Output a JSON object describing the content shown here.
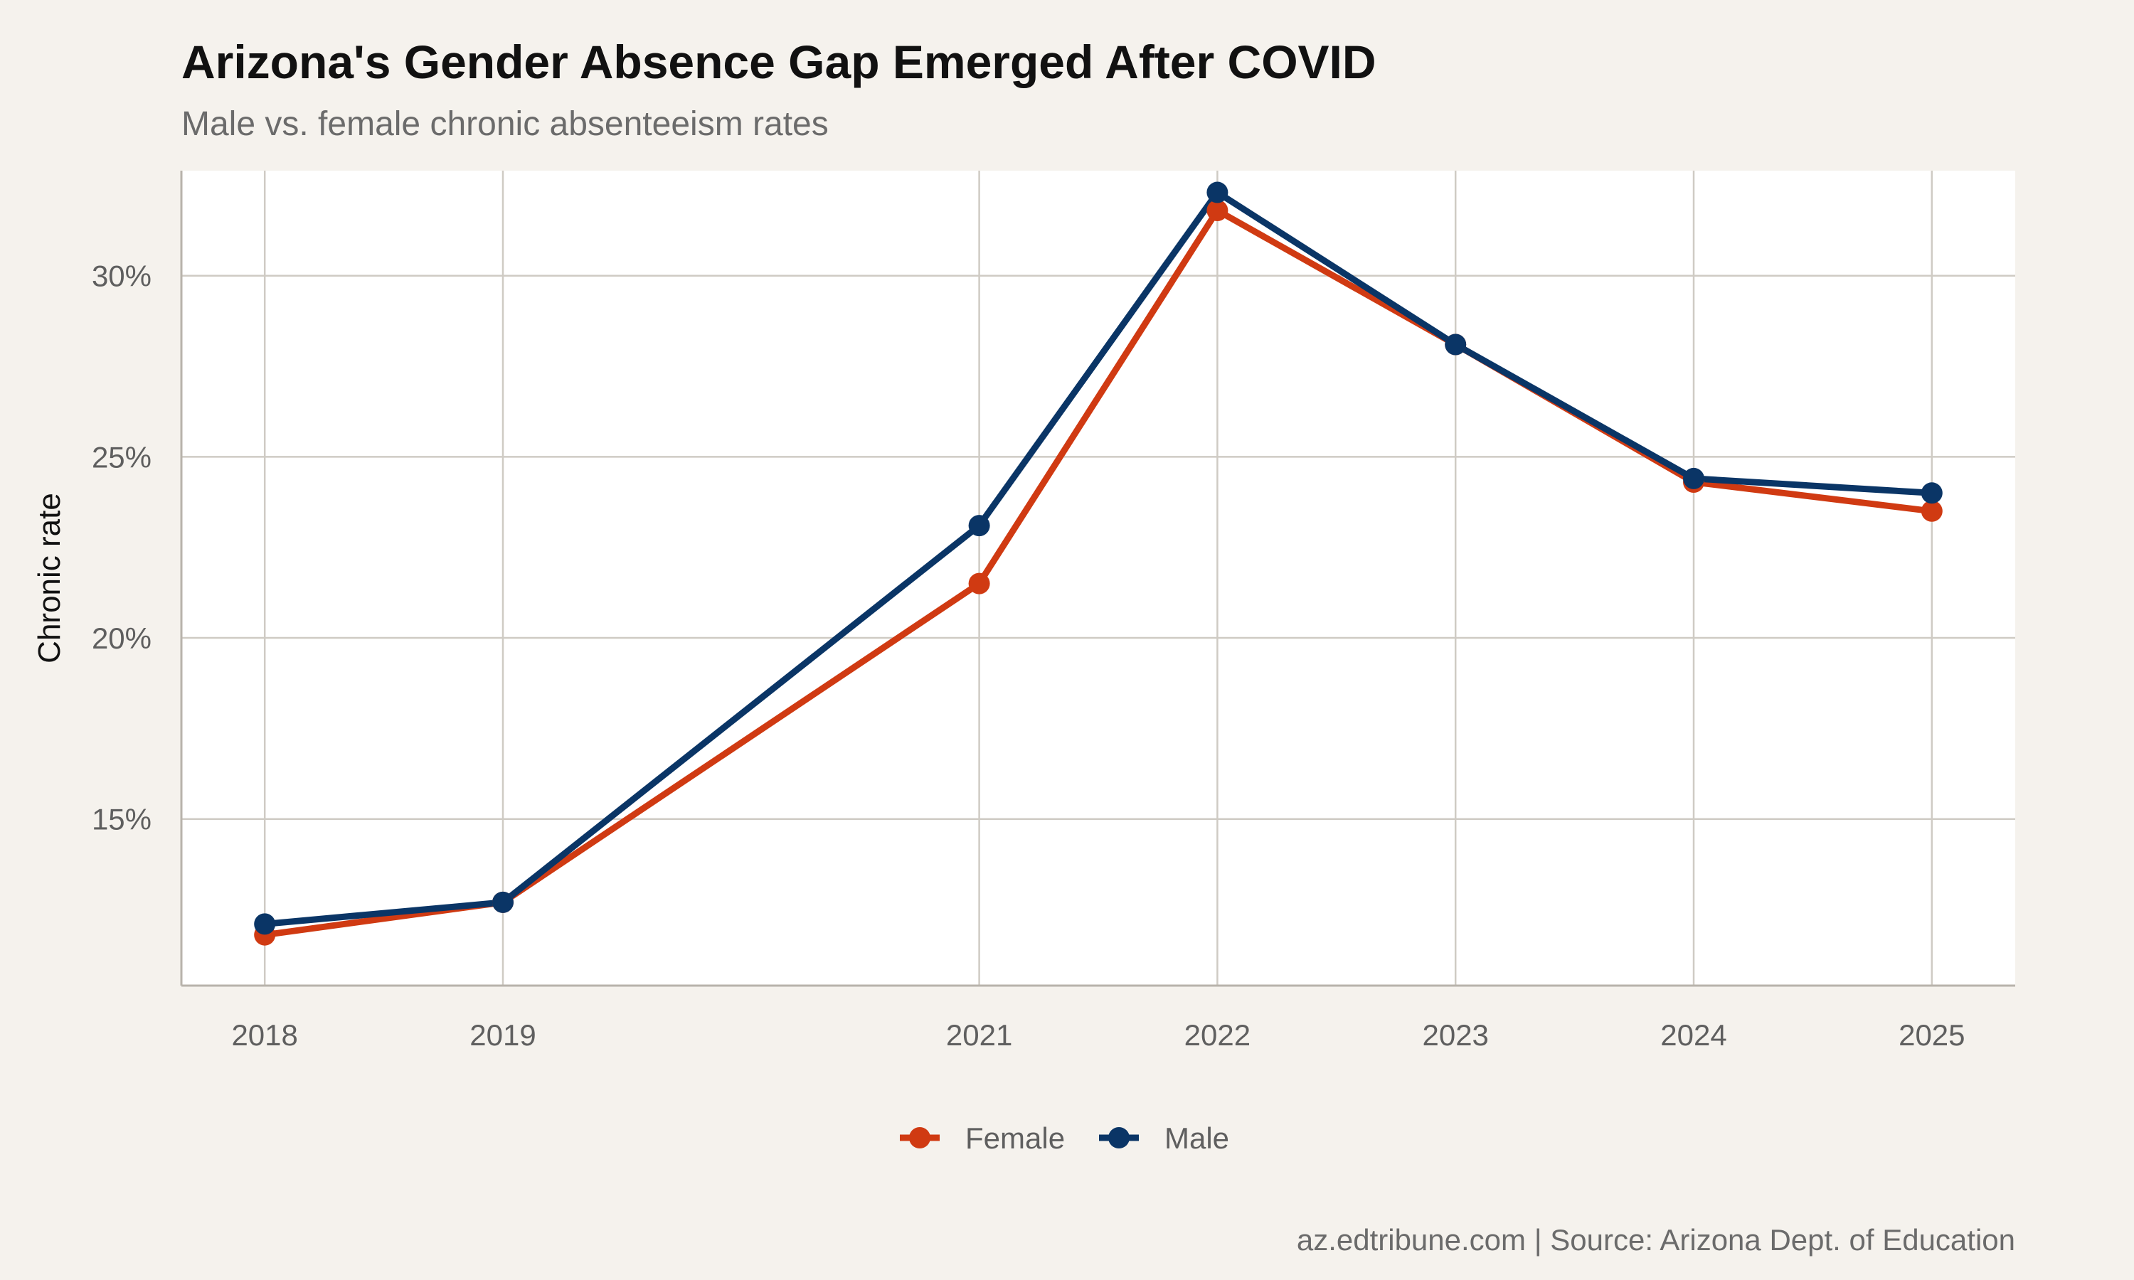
{
  "chart_data": {
    "type": "line",
    "title": "Arizona's Gender Absence Gap Emerged After COVID",
    "subtitle": "Male vs. female chronic absenteeism rates",
    "xlabel": "",
    "ylabel": "Chronic rate",
    "caption": "az.edtribune.com | Source: Arizona Dept. of Education",
    "x": [
      2018,
      2019,
      2021,
      2022,
      2023,
      2024,
      2025
    ],
    "x_ticks": [
      "2018",
      "2019",
      "2021",
      "2022",
      "2023",
      "2024",
      "2025"
    ],
    "xlim": [
      2017.65,
      2025.35
    ],
    "ylim": [
      10.4,
      32.9
    ],
    "y_ticks": [
      15,
      20,
      25,
      30
    ],
    "y_tick_labels": [
      "15%",
      "20%",
      "25%",
      "30%"
    ],
    "grid": true,
    "legend_position": "bottom",
    "series": [
      {
        "name": "Female",
        "color": "#d03a12",
        "values": [
          11.8,
          12.7,
          21.5,
          31.8,
          28.1,
          24.3,
          23.5
        ]
      },
      {
        "name": "Male",
        "color": "#0a3566",
        "values": [
          12.1,
          12.7,
          23.1,
          32.3,
          28.1,
          24.4,
          24.0
        ]
      }
    ]
  }
}
